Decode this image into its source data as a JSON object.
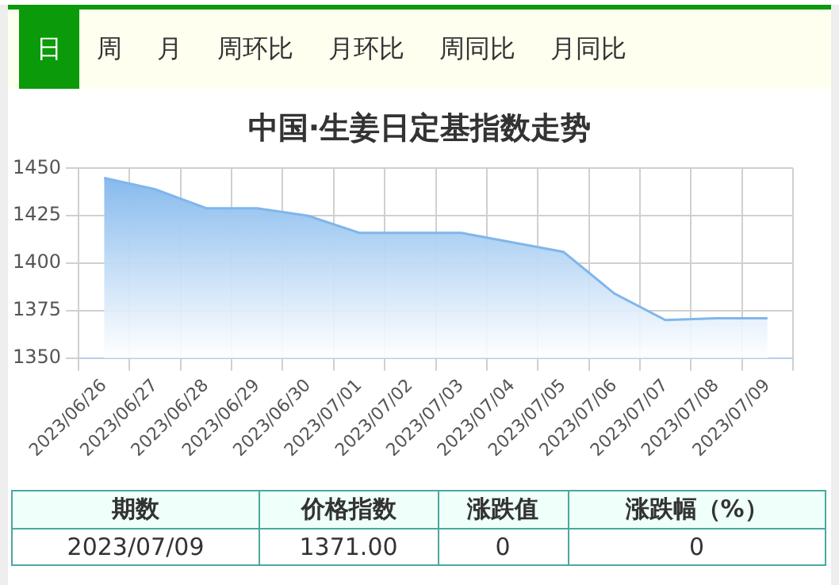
{
  "chart_data": {
    "type": "area",
    "title": "中国·生姜日定基指数走势",
    "categories": [
      "2023/06/26",
      "2023/06/27",
      "2023/06/28",
      "2023/06/29",
      "2023/06/30",
      "2023/07/01",
      "2023/07/02",
      "2023/07/03",
      "2023/07/04",
      "2023/07/05",
      "2023/07/06",
      "2023/07/07",
      "2023/07/08",
      "2023/07/09"
    ],
    "series": [
      {
        "color": "#7fb6ec",
        "values": [
          1445,
          1439,
          1429,
          1429,
          1425,
          1416,
          1416,
          1416,
          1411,
          1406,
          1384,
          1370,
          1371,
          1371
        ]
      }
    ],
    "ylim": [
      1350,
      1450
    ],
    "yticks": [
      1350,
      1375,
      1400,
      1425,
      1450
    ],
    "grid": true,
    "legend": false,
    "marker": "none",
    "annotations": [
      "日",
      "周",
      "月",
      "周环比",
      "月环比",
      "周同比",
      "月同比",
      "期数",
      "价格指数",
      "涨跌值",
      "涨跌幅（%）",
      "2023/07/09",
      "1371.00",
      "0",
      "0"
    ]
  }
}
